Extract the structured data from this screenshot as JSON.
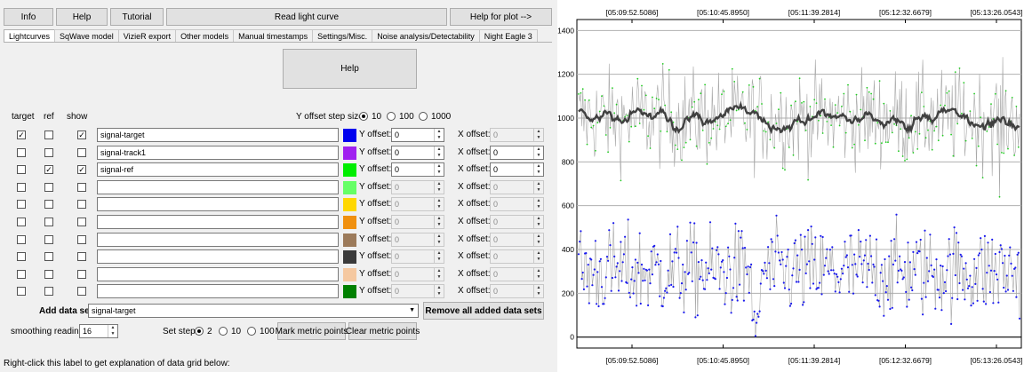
{
  "topbar": {
    "info": "Info",
    "help": "Help",
    "tutorial": "Tutorial",
    "read": "Read light curve",
    "helpplot": "Help for plot -->"
  },
  "tabs": [
    "Lightcurves",
    "SqWave model",
    "VizieR export",
    "Other models",
    "Manual timestamps",
    "Settings/Misc.",
    "Noise analysis/Detectability",
    "Night Eagle 3"
  ],
  "help_button": "Help",
  "headers": {
    "target": "target",
    "ref": "ref",
    "show": "show"
  },
  "yoffset_step": {
    "label": "Y offset step size:",
    "options": [
      "10",
      "100",
      "1000"
    ],
    "selected": "10"
  },
  "row_labels": {
    "y": "Y offset:",
    "x": "X offset:"
  },
  "rows": [
    {
      "target": true,
      "ref": false,
      "show": true,
      "name": "signal-target",
      "color": "#0000ee",
      "y": "0",
      "x": "0",
      "enabled": true,
      "xenabled": false
    },
    {
      "target": false,
      "ref": false,
      "show": false,
      "name": "signal-track1",
      "color": "#a020f0",
      "y": "0",
      "x": "0",
      "enabled": true,
      "xenabled": true
    },
    {
      "target": false,
      "ref": true,
      "show": true,
      "name": "signal-ref",
      "color": "#00ee00",
      "y": "0",
      "x": "0",
      "enabled": true,
      "xenabled": true
    },
    {
      "target": false,
      "ref": false,
      "show": false,
      "name": "",
      "color": "#66ff66",
      "y": "0",
      "x": "0",
      "enabled": false,
      "xenabled": false
    },
    {
      "target": false,
      "ref": false,
      "show": false,
      "name": "",
      "color": "#ffd700",
      "y": "0",
      "x": "0",
      "enabled": false,
      "xenabled": false
    },
    {
      "target": false,
      "ref": false,
      "show": false,
      "name": "",
      "color": "#f0900f",
      "y": "0",
      "x": "0",
      "enabled": false,
      "xenabled": false
    },
    {
      "target": false,
      "ref": false,
      "show": false,
      "name": "",
      "color": "#9c7a5a",
      "y": "0",
      "x": "0",
      "enabled": false,
      "xenabled": false
    },
    {
      "target": false,
      "ref": false,
      "show": false,
      "name": "",
      "color": "#3a3a3a",
      "y": "0",
      "x": "0",
      "enabled": false,
      "xenabled": false
    },
    {
      "target": false,
      "ref": false,
      "show": false,
      "name": "",
      "color": "#f5c8a0",
      "y": "0",
      "x": "0",
      "enabled": false,
      "xenabled": false
    },
    {
      "target": false,
      "ref": false,
      "show": false,
      "name": "",
      "color": "#008000",
      "y": "0",
      "x": "0",
      "enabled": false,
      "xenabled": false
    }
  ],
  "add_data_set": {
    "label": "Add data set",
    "value": "signal-target",
    "remove": "Remove all added data sets"
  },
  "smoothing": {
    "label": "smoothing readings",
    "value": "16"
  },
  "set_step": {
    "label": "Set step:",
    "options": [
      "2",
      "10",
      "100"
    ],
    "selected": "2"
  },
  "metric": {
    "mark": "Mark metric points",
    "clear": "Clear metric points"
  },
  "footer": "Right-click this label to get explanation of data grid below:",
  "plot": {
    "timestamps": [
      "[05:09:52.5086]",
      "[05:10:45.8950]",
      "[05:11:39.2814]",
      "[05:12:32.6679]",
      "[05:13:26.0543]"
    ],
    "yticks": [
      "1400",
      "1200",
      "1000",
      "800",
      "600",
      "400",
      "200",
      "0"
    ],
    "colors": {
      "target": "#1a1aee",
      "ref": "#22cc22",
      "smooth": "#404040"
    }
  },
  "chart_data": {
    "type": "line",
    "ylim": [
      -50,
      1450
    ],
    "yticks": [
      0,
      200,
      400,
      600,
      800,
      1000,
      1200,
      1400
    ],
    "x_tick_labels": [
      "[05:09:52.5086]",
      "[05:10:45.8950]",
      "[05:11:39.2814]",
      "[05:12:32.6679]",
      "[05:13:26.0543]"
    ],
    "series": [
      {
        "color": "#22cc22",
        "mean": 1000,
        "spread": 120
      },
      {
        "color": "#404040",
        "mean": 1000,
        "spread": 30
      },
      {
        "color": "#1a1aee",
        "mean": 300,
        "spread": 110
      }
    ]
  }
}
